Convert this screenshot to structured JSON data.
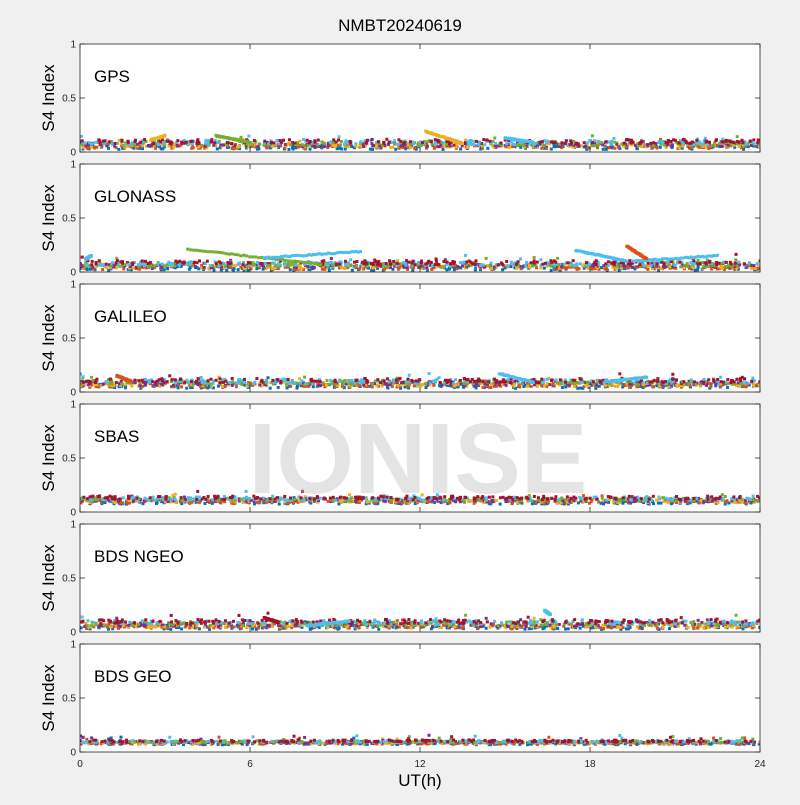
{
  "figure": {
    "title": "NMBT20240619",
    "xlabel": "UT(h)",
    "watermark": "IONISE"
  },
  "chart_data": {
    "type": "scatter",
    "title": "NMBT20240619",
    "xlabel": "UT(h)",
    "ylabel": "S4 Index",
    "xlim": [
      0,
      24
    ],
    "ylim": [
      0,
      1
    ],
    "xticks": [
      0,
      6,
      12,
      18,
      24
    ],
    "yticks": [
      0,
      0.5,
      1
    ],
    "ytick_labels": [
      "0",
      "0.5",
      "1"
    ],
    "grid": false,
    "series_colors": [
      "#0072BD",
      "#D95319",
      "#EDB120",
      "#7E2F8E",
      "#77AC30",
      "#4DBEEE",
      "#A2142F"
    ],
    "panels": [
      {
        "label": "GPS",
        "baseline": 0.07,
        "spread": 0.025,
        "features": [
          {
            "x": [
              2.5,
              3.0
            ],
            "y": [
              0.11,
              0.15
            ],
            "color": "#EDB120"
          },
          {
            "x": [
              4.8,
              6.0
            ],
            "y": [
              0.15,
              0.09
            ],
            "color": "#77AC30"
          },
          {
            "x": [
              12.2,
              13.5
            ],
            "y": [
              0.19,
              0.08
            ],
            "color": "#EDB120"
          },
          {
            "x": [
              15.0,
              16.0
            ],
            "y": [
              0.13,
              0.09
            ],
            "color": "#4DBEEE"
          }
        ]
      },
      {
        "label": "GLONASS",
        "baseline": 0.06,
        "spread": 0.025,
        "features": [
          {
            "x": [
              3.8,
              8.5
            ],
            "y": [
              0.21,
              0.07
            ],
            "color": "#77AC30"
          },
          {
            "x": [
              6.5,
              9.9
            ],
            "y": [
              0.13,
              0.19
            ],
            "color": "#4DBEEE"
          },
          {
            "x": [
              0.2,
              0.4
            ],
            "y": [
              0.12,
              0.15
            ],
            "color": "#4DBEEE"
          },
          {
            "x": [
              17.5,
              19.3
            ],
            "y": [
              0.2,
              0.1
            ],
            "color": "#4DBEEE"
          },
          {
            "x": [
              19.5,
              22.5
            ],
            "y": [
              0.1,
              0.15
            ],
            "color": "#4DBEEE"
          },
          {
            "x": [
              19.3,
              20.0
            ],
            "y": [
              0.24,
              0.12
            ],
            "color": "#D95319"
          }
        ]
      },
      {
        "label": "GALILEO",
        "baseline": 0.08,
        "spread": 0.025,
        "features": [
          {
            "x": [
              1.3,
              1.8
            ],
            "y": [
              0.15,
              0.1
            ],
            "color": "#D95319"
          },
          {
            "x": [
              14.8,
              16.0
            ],
            "y": [
              0.17,
              0.09
            ],
            "color": "#4DBEEE"
          },
          {
            "x": [
              18.5,
              20.0
            ],
            "y": [
              0.09,
              0.14
            ],
            "color": "#4DBEEE"
          }
        ]
      },
      {
        "label": "SBAS",
        "baseline": 0.11,
        "spread": 0.02,
        "features": []
      },
      {
        "label": "BDS NGEO",
        "baseline": 0.07,
        "spread": 0.025,
        "features": [
          {
            "x": [
              6.5,
              7.0
            ],
            "y": [
              0.13,
              0.09
            ],
            "color": "#A2142F"
          },
          {
            "x": [
              8.0,
              9.5
            ],
            "y": [
              0.06,
              0.1
            ],
            "color": "#4DBEEE"
          },
          {
            "x": [
              16.4,
              16.6
            ],
            "y": [
              0.2,
              0.16
            ],
            "color": "#4DBEEE"
          }
        ]
      },
      {
        "label": "BDS GEO",
        "baseline": 0.09,
        "spread": 0.012,
        "features": []
      }
    ]
  }
}
